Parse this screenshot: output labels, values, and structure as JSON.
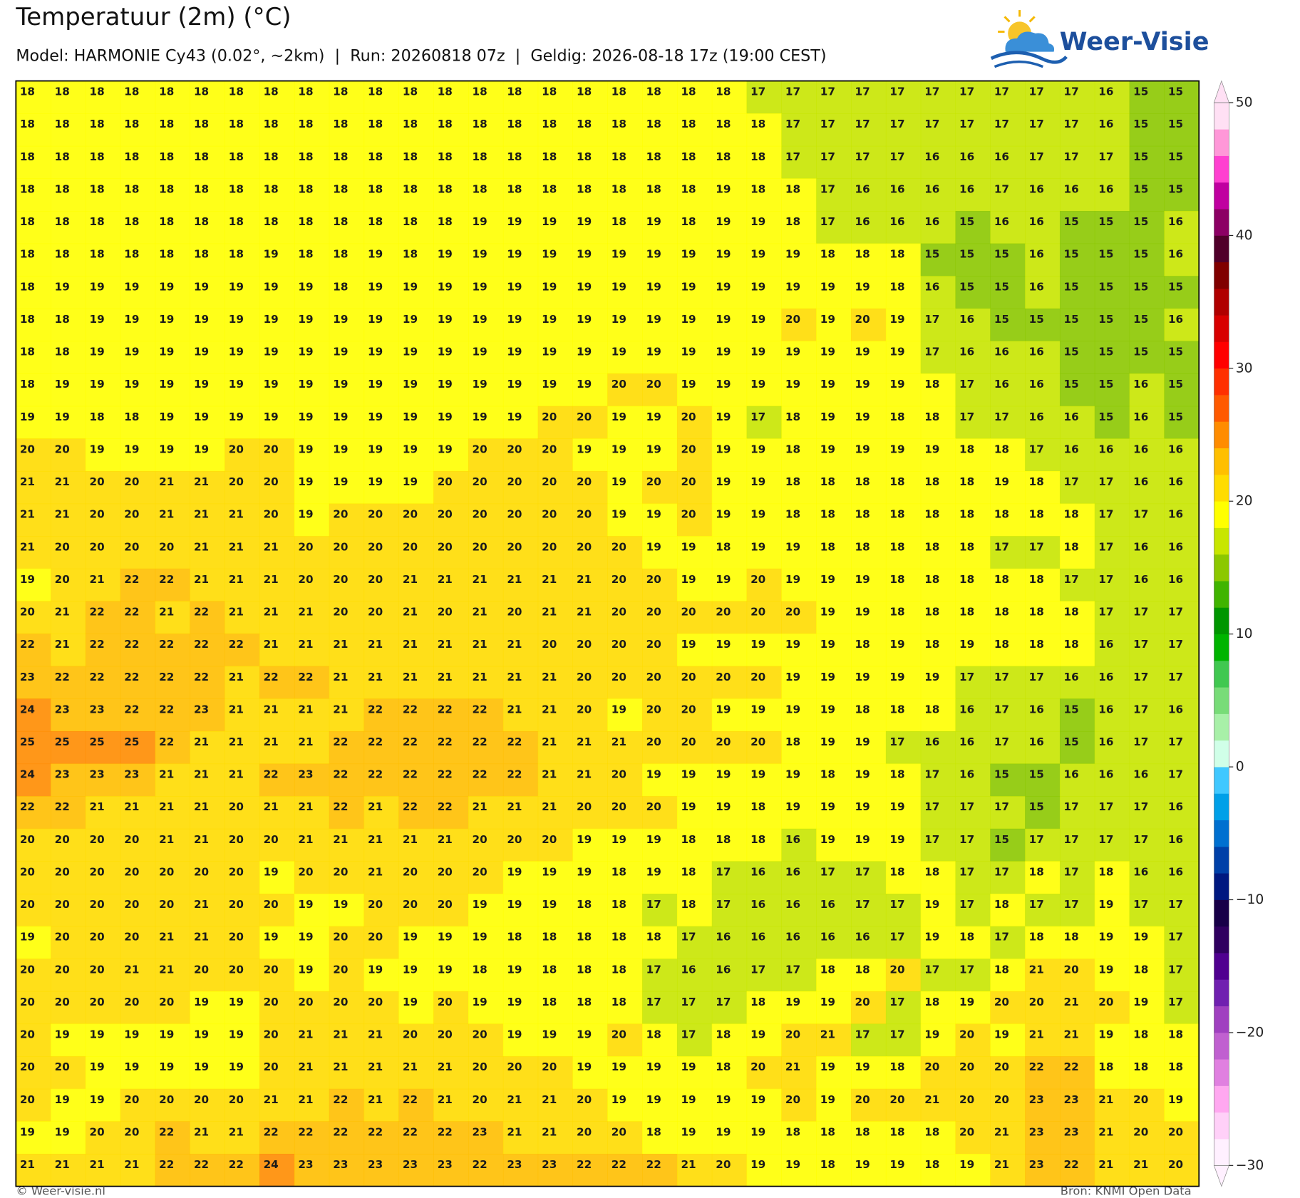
{
  "chart_data": {
    "type": "heatmap",
    "title": "Temperatuur (2m) (°C)",
    "subtitle": "Model: HARMONIE Cy43 (0.02°, ~2km)  |  Run: 20260818 07z  |  Geldig: 2026-08-18 17z (19:00 CEST)",
    "brand": "Weer-Visie",
    "credit": "© Weer-visie.nl",
    "source": "Bron: KNMI Open Data",
    "values": [
      [
        18,
        18,
        18,
        18,
        18,
        18,
        18,
        18,
        18,
        18,
        18,
        18,
        18,
        18,
        18,
        18,
        18,
        18,
        18,
        18,
        18,
        17,
        17,
        17,
        17,
        17,
        17,
        17,
        17,
        17,
        17,
        16,
        15,
        15
      ],
      [
        18,
        18,
        18,
        18,
        18,
        18,
        18,
        18,
        18,
        18,
        18,
        18,
        18,
        18,
        18,
        18,
        18,
        18,
        18,
        18,
        18,
        18,
        17,
        17,
        17,
        17,
        17,
        17,
        17,
        17,
        17,
        16,
        15,
        15
      ],
      [
        18,
        18,
        18,
        18,
        18,
        18,
        18,
        18,
        18,
        18,
        18,
        18,
        18,
        18,
        18,
        18,
        18,
        18,
        18,
        18,
        18,
        18,
        17,
        17,
        17,
        17,
        16,
        16,
        16,
        17,
        17,
        17,
        15,
        15
      ],
      [
        18,
        18,
        18,
        18,
        18,
        18,
        18,
        18,
        18,
        18,
        18,
        18,
        18,
        18,
        18,
        18,
        18,
        18,
        18,
        18,
        19,
        18,
        18,
        17,
        16,
        16,
        16,
        16,
        17,
        16,
        16,
        16,
        15,
        15
      ],
      [
        18,
        18,
        18,
        18,
        18,
        18,
        18,
        18,
        18,
        18,
        18,
        18,
        18,
        19,
        19,
        19,
        19,
        18,
        19,
        18,
        19,
        19,
        18,
        17,
        16,
        16,
        16,
        15,
        16,
        16,
        15,
        15,
        15,
        16
      ],
      [
        18,
        18,
        18,
        18,
        18,
        18,
        18,
        19,
        18,
        18,
        19,
        18,
        19,
        19,
        19,
        19,
        19,
        19,
        19,
        19,
        19,
        19,
        19,
        18,
        18,
        18,
        15,
        15,
        15,
        16,
        15,
        15,
        15,
        16
      ],
      [
        18,
        19,
        19,
        19,
        19,
        19,
        19,
        19,
        19,
        18,
        19,
        19,
        19,
        19,
        19,
        19,
        19,
        19,
        19,
        19,
        19,
        19,
        19,
        19,
        19,
        18,
        16,
        15,
        15,
        16,
        15,
        15,
        15,
        15
      ],
      [
        18,
        18,
        19,
        19,
        19,
        19,
        19,
        19,
        19,
        19,
        19,
        19,
        19,
        19,
        19,
        19,
        19,
        19,
        19,
        19,
        19,
        19,
        20,
        19,
        20,
        19,
        17,
        16,
        15,
        15,
        15,
        15,
        15,
        16
      ],
      [
        18,
        18,
        19,
        19,
        19,
        19,
        19,
        19,
        19,
        19,
        19,
        19,
        19,
        19,
        19,
        19,
        19,
        19,
        19,
        19,
        19,
        19,
        19,
        19,
        19,
        19,
        17,
        16,
        16,
        16,
        15,
        15,
        15,
        15
      ],
      [
        18,
        19,
        19,
        19,
        19,
        19,
        19,
        19,
        19,
        19,
        19,
        19,
        19,
        19,
        19,
        19,
        19,
        20,
        20,
        19,
        19,
        19,
        19,
        19,
        19,
        19,
        18,
        17,
        16,
        16,
        15,
        15,
        16,
        15
      ],
      [
        19,
        19,
        18,
        18,
        19,
        19,
        19,
        19,
        19,
        19,
        19,
        19,
        19,
        19,
        19,
        20,
        20,
        19,
        19,
        20,
        19,
        17,
        18,
        19,
        19,
        18,
        18,
        17,
        17,
        16,
        16,
        15,
        16,
        15
      ],
      [
        20,
        20,
        19,
        19,
        19,
        19,
        20,
        20,
        19,
        19,
        19,
        19,
        19,
        20,
        20,
        20,
        19,
        19,
        19,
        20,
        19,
        19,
        18,
        19,
        19,
        19,
        19,
        18,
        18,
        17,
        16,
        16,
        16,
        16
      ],
      [
        21,
        21,
        20,
        20,
        21,
        21,
        20,
        20,
        19,
        19,
        19,
        19,
        20,
        20,
        20,
        20,
        20,
        19,
        20,
        20,
        19,
        19,
        18,
        18,
        18,
        18,
        18,
        18,
        19,
        18,
        17,
        17,
        16,
        16
      ],
      [
        21,
        21,
        20,
        20,
        21,
        21,
        21,
        20,
        19,
        20,
        20,
        20,
        20,
        20,
        20,
        20,
        20,
        19,
        19,
        20,
        19,
        19,
        18,
        18,
        18,
        18,
        18,
        18,
        18,
        18,
        18,
        17,
        17,
        16
      ],
      [
        21,
        20,
        20,
        20,
        20,
        21,
        21,
        21,
        20,
        20,
        20,
        20,
        20,
        20,
        20,
        20,
        20,
        20,
        19,
        19,
        18,
        19,
        19,
        18,
        18,
        18,
        18,
        18,
        17,
        17,
        18,
        17,
        16,
        16
      ],
      [
        19,
        20,
        21,
        22,
        22,
        21,
        21,
        21,
        20,
        20,
        20,
        21,
        21,
        21,
        21,
        21,
        21,
        20,
        20,
        19,
        19,
        20,
        19,
        19,
        19,
        18,
        18,
        18,
        18,
        18,
        17,
        17,
        16,
        16
      ],
      [
        20,
        21,
        22,
        22,
        21,
        22,
        21,
        21,
        21,
        20,
        20,
        21,
        20,
        21,
        20,
        21,
        21,
        20,
        20,
        20,
        20,
        20,
        20,
        19,
        19,
        18,
        18,
        18,
        18,
        18,
        18,
        17,
        17,
        17
      ],
      [
        22,
        21,
        22,
        22,
        22,
        22,
        22,
        21,
        21,
        21,
        21,
        21,
        21,
        21,
        21,
        20,
        20,
        20,
        20,
        19,
        19,
        19,
        19,
        19,
        18,
        19,
        18,
        19,
        18,
        18,
        18,
        16,
        17,
        17
      ],
      [
        23,
        22,
        22,
        22,
        22,
        22,
        21,
        22,
        22,
        21,
        21,
        21,
        21,
        21,
        21,
        21,
        20,
        20,
        20,
        20,
        20,
        20,
        19,
        19,
        19,
        19,
        19,
        17,
        17,
        17,
        16,
        16,
        17,
        17
      ],
      [
        24,
        23,
        23,
        22,
        22,
        23,
        21,
        21,
        21,
        21,
        22,
        22,
        22,
        22,
        21,
        21,
        20,
        19,
        20,
        20,
        19,
        19,
        19,
        19,
        18,
        18,
        18,
        16,
        17,
        16,
        15,
        16,
        17,
        16
      ],
      [
        25,
        25,
        25,
        25,
        22,
        21,
        21,
        21,
        21,
        22,
        22,
        22,
        22,
        22,
        22,
        21,
        21,
        21,
        20,
        20,
        20,
        20,
        18,
        19,
        19,
        17,
        16,
        16,
        17,
        16,
        15,
        16,
        17,
        17
      ],
      [
        24,
        23,
        23,
        23,
        21,
        21,
        21,
        22,
        23,
        22,
        22,
        22,
        22,
        22,
        22,
        21,
        21,
        20,
        19,
        19,
        19,
        19,
        19,
        18,
        19,
        18,
        17,
        16,
        15,
        15,
        16,
        16,
        16,
        17
      ],
      [
        22,
        22,
        21,
        21,
        21,
        21,
        20,
        21,
        21,
        22,
        21,
        22,
        22,
        21,
        21,
        21,
        20,
        20,
        20,
        19,
        19,
        18,
        19,
        19,
        19,
        19,
        17,
        17,
        17,
        15,
        17,
        17,
        17,
        16
      ],
      [
        20,
        20,
        20,
        20,
        21,
        21,
        20,
        20,
        21,
        21,
        21,
        21,
        21,
        20,
        20,
        20,
        19,
        19,
        19,
        18,
        18,
        18,
        16,
        19,
        19,
        19,
        17,
        17,
        15,
        17,
        17,
        17,
        17,
        16
      ],
      [
        20,
        20,
        20,
        20,
        20,
        20,
        20,
        19,
        20,
        20,
        21,
        20,
        20,
        20,
        19,
        19,
        19,
        18,
        19,
        18,
        17,
        16,
        16,
        17,
        17,
        18,
        18,
        17,
        17,
        18,
        17,
        18,
        16,
        16
      ],
      [
        20,
        20,
        20,
        20,
        20,
        21,
        20,
        20,
        19,
        19,
        20,
        20,
        20,
        19,
        19,
        19,
        18,
        18,
        17,
        18,
        17,
        16,
        16,
        16,
        17,
        17,
        19,
        17,
        18,
        17,
        17,
        19,
        17,
        17
      ],
      [
        19,
        20,
        20,
        20,
        21,
        21,
        20,
        19,
        19,
        20,
        20,
        19,
        19,
        19,
        18,
        18,
        18,
        18,
        18,
        17,
        16,
        16,
        16,
        16,
        16,
        17,
        19,
        18,
        17,
        18,
        18,
        19,
        19,
        17
      ],
      [
        20,
        20,
        20,
        21,
        21,
        20,
        20,
        20,
        19,
        20,
        19,
        19,
        19,
        18,
        19,
        18,
        18,
        18,
        17,
        16,
        16,
        17,
        17,
        18,
        18,
        20,
        17,
        17,
        18,
        21,
        20,
        19,
        18,
        17
      ],
      [
        20,
        20,
        20,
        20,
        20,
        19,
        19,
        20,
        20,
        20,
        20,
        19,
        20,
        19,
        19,
        18,
        18,
        18,
        17,
        17,
        17,
        18,
        19,
        19,
        20,
        17,
        18,
        19,
        20,
        20,
        21,
        20,
        19,
        17
      ],
      [
        20,
        19,
        19,
        19,
        19,
        19,
        19,
        20,
        21,
        21,
        21,
        20,
        20,
        20,
        19,
        19,
        19,
        20,
        18,
        17,
        18,
        19,
        20,
        21,
        17,
        17,
        19,
        20,
        19,
        21,
        21,
        19,
        18,
        18
      ],
      [
        20,
        20,
        19,
        19,
        19,
        19,
        19,
        20,
        21,
        21,
        21,
        21,
        21,
        20,
        20,
        20,
        19,
        19,
        19,
        19,
        18,
        20,
        21,
        19,
        19,
        18,
        20,
        20,
        20,
        22,
        22,
        18,
        18,
        18
      ],
      [
        20,
        19,
        19,
        20,
        20,
        20,
        20,
        21,
        21,
        22,
        21,
        22,
        21,
        20,
        21,
        21,
        20,
        19,
        19,
        19,
        19,
        19,
        20,
        19,
        20,
        20,
        21,
        20,
        20,
        23,
        23,
        21,
        20,
        19
      ],
      [
        19,
        19,
        20,
        20,
        22,
        21,
        21,
        22,
        22,
        22,
        22,
        22,
        22,
        23,
        21,
        21,
        20,
        20,
        18,
        19,
        19,
        19,
        18,
        18,
        18,
        18,
        18,
        20,
        21,
        23,
        23,
        21,
        20,
        20
      ],
      [
        21,
        21,
        21,
        21,
        22,
        22,
        22,
        24,
        23,
        23,
        23,
        23,
        23,
        22,
        23,
        23,
        22,
        22,
        22,
        21,
        20,
        19,
        19,
        18,
        19,
        19,
        18,
        19,
        21,
        23,
        22,
        21,
        21,
        20
      ]
    ],
    "colorbar": {
      "lim": [
        -30,
        50
      ],
      "ticks": [
        {
          "value": -30,
          "label": "−30"
        },
        {
          "value": -20,
          "label": "−20"
        },
        {
          "value": -10,
          "label": "−10"
        },
        0,
        10,
        20,
        30,
        40,
        50
      ],
      "colors": [
        "#fff0ff",
        "#ffd0f8",
        "#ffa8f0",
        "#e080e0",
        "#c060d0",
        "#a040c0",
        "#7020b0",
        "#500090",
        "#300060",
        "#180048",
        "#001880",
        "#0040a8",
        "#0070d0",
        "#00a0e8",
        "#40c8ff",
        "#d0ffe8",
        "#a8f0a8",
        "#78dc78",
        "#40c850",
        "#00b400",
        "#009600",
        "#40b400",
        "#8cc800",
        "#c8e600",
        "#ffff00",
        "#ffdc00",
        "#ffbf00",
        "#ff8c00",
        "#ff5a00",
        "#ff3000",
        "#ff0000",
        "#d80000",
        "#b00000",
        "#800000",
        "#50002a",
        "#8c0064",
        "#c000a0",
        "#ff40d0",
        "#ff98d8",
        "#ffe0f4"
      ]
    }
  }
}
